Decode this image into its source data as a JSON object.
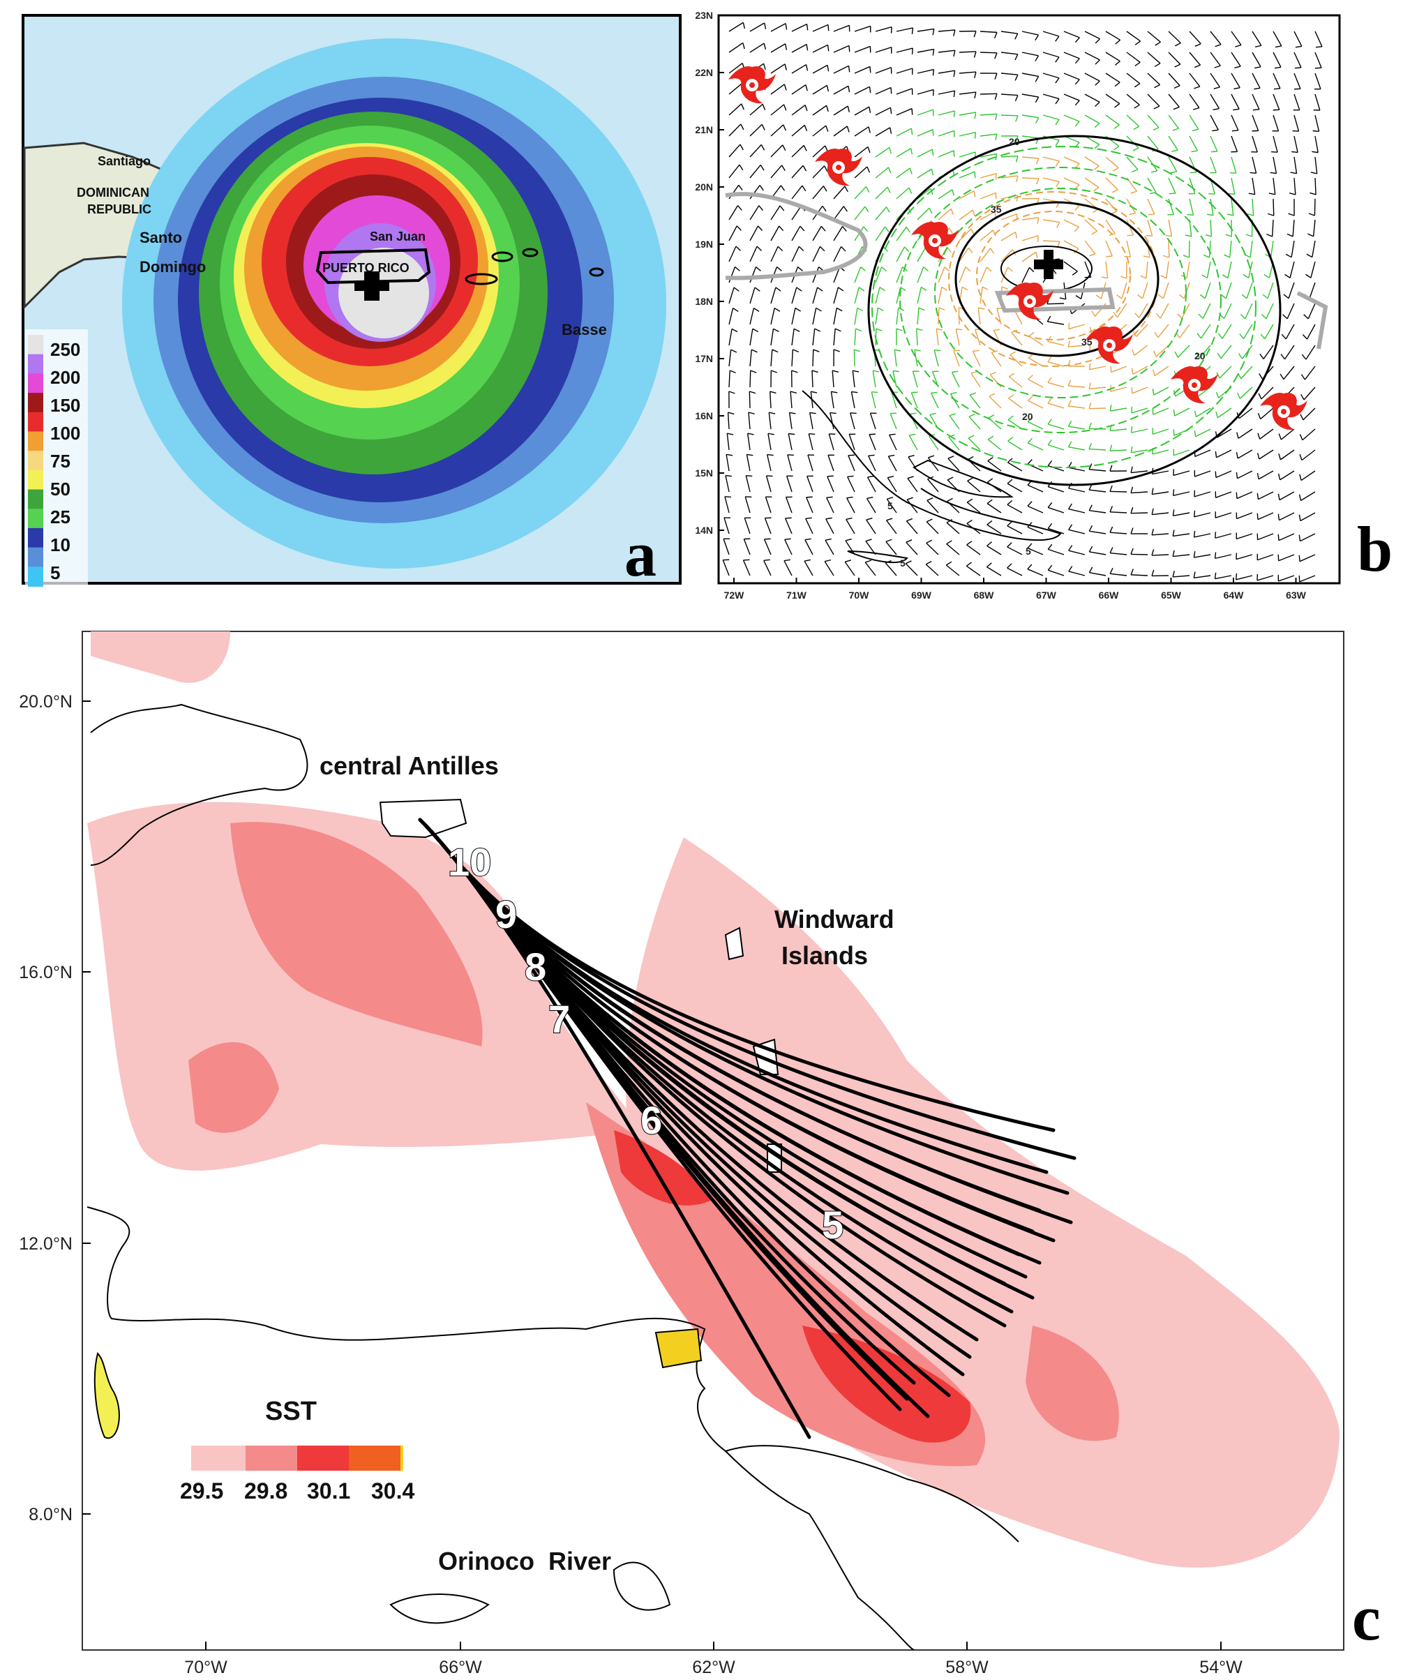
{
  "panels": {
    "a": {
      "letter": "a",
      "place_labels": [
        "Santiago",
        "DOMINICAN",
        "REPUBLIC",
        "Santo",
        "Domingo",
        "PUERTO RICO",
        "San Juan",
        "Basse"
      ],
      "legend_values": [
        "250",
        "200",
        "150",
        "100",
        "75",
        "50",
        "25",
        "10",
        "5"
      ],
      "legend_colors": [
        "#e4e4e4",
        "#b077f0",
        "#e34ad8",
        "#9e1a1a",
        "#e82c2c",
        "#f0a030",
        "#f7d880",
        "#f3f055",
        "#3ea53a",
        "#55d24f",
        "#2a3aa8",
        "#5a8ed8",
        "#3fc5f3"
      ]
    },
    "b": {
      "letter": "b",
      "lat_ticks": [
        "23N",
        "22N",
        "21N",
        "20N",
        "19N",
        "18N",
        "17N",
        "16N",
        "15N",
        "14N"
      ],
      "lon_ticks": [
        "72W",
        "71W",
        "70W",
        "69W",
        "68W",
        "67W",
        "66W",
        "65W",
        "64W",
        "63W"
      ],
      "contour_labels": [
        "20",
        "35",
        "35",
        "20",
        "20",
        "5",
        "5",
        "5"
      ]
    },
    "c": {
      "letter": "c",
      "lat_ticks": [
        "20.0°N",
        "16.0°N",
        "12.0°N",
        "8.0°N"
      ],
      "lon_ticks": [
        "70°W",
        "66°W",
        "62°W",
        "58°W",
        "54°W"
      ],
      "place_labels": [
        "central Antilles",
        "Windward",
        "Islands",
        "Orinoco  River"
      ],
      "track_day_labels": [
        "10",
        "9",
        "8",
        "7",
        "6",
        "5"
      ],
      "sst_legend": {
        "title": "SST",
        "values": [
          "29.5",
          "29.8",
          "30.1",
          "30.4"
        ],
        "colors": [
          "#f9c4c4",
          "#f58a8a",
          "#ee3a3a",
          "#f06020"
        ]
      }
    }
  }
}
